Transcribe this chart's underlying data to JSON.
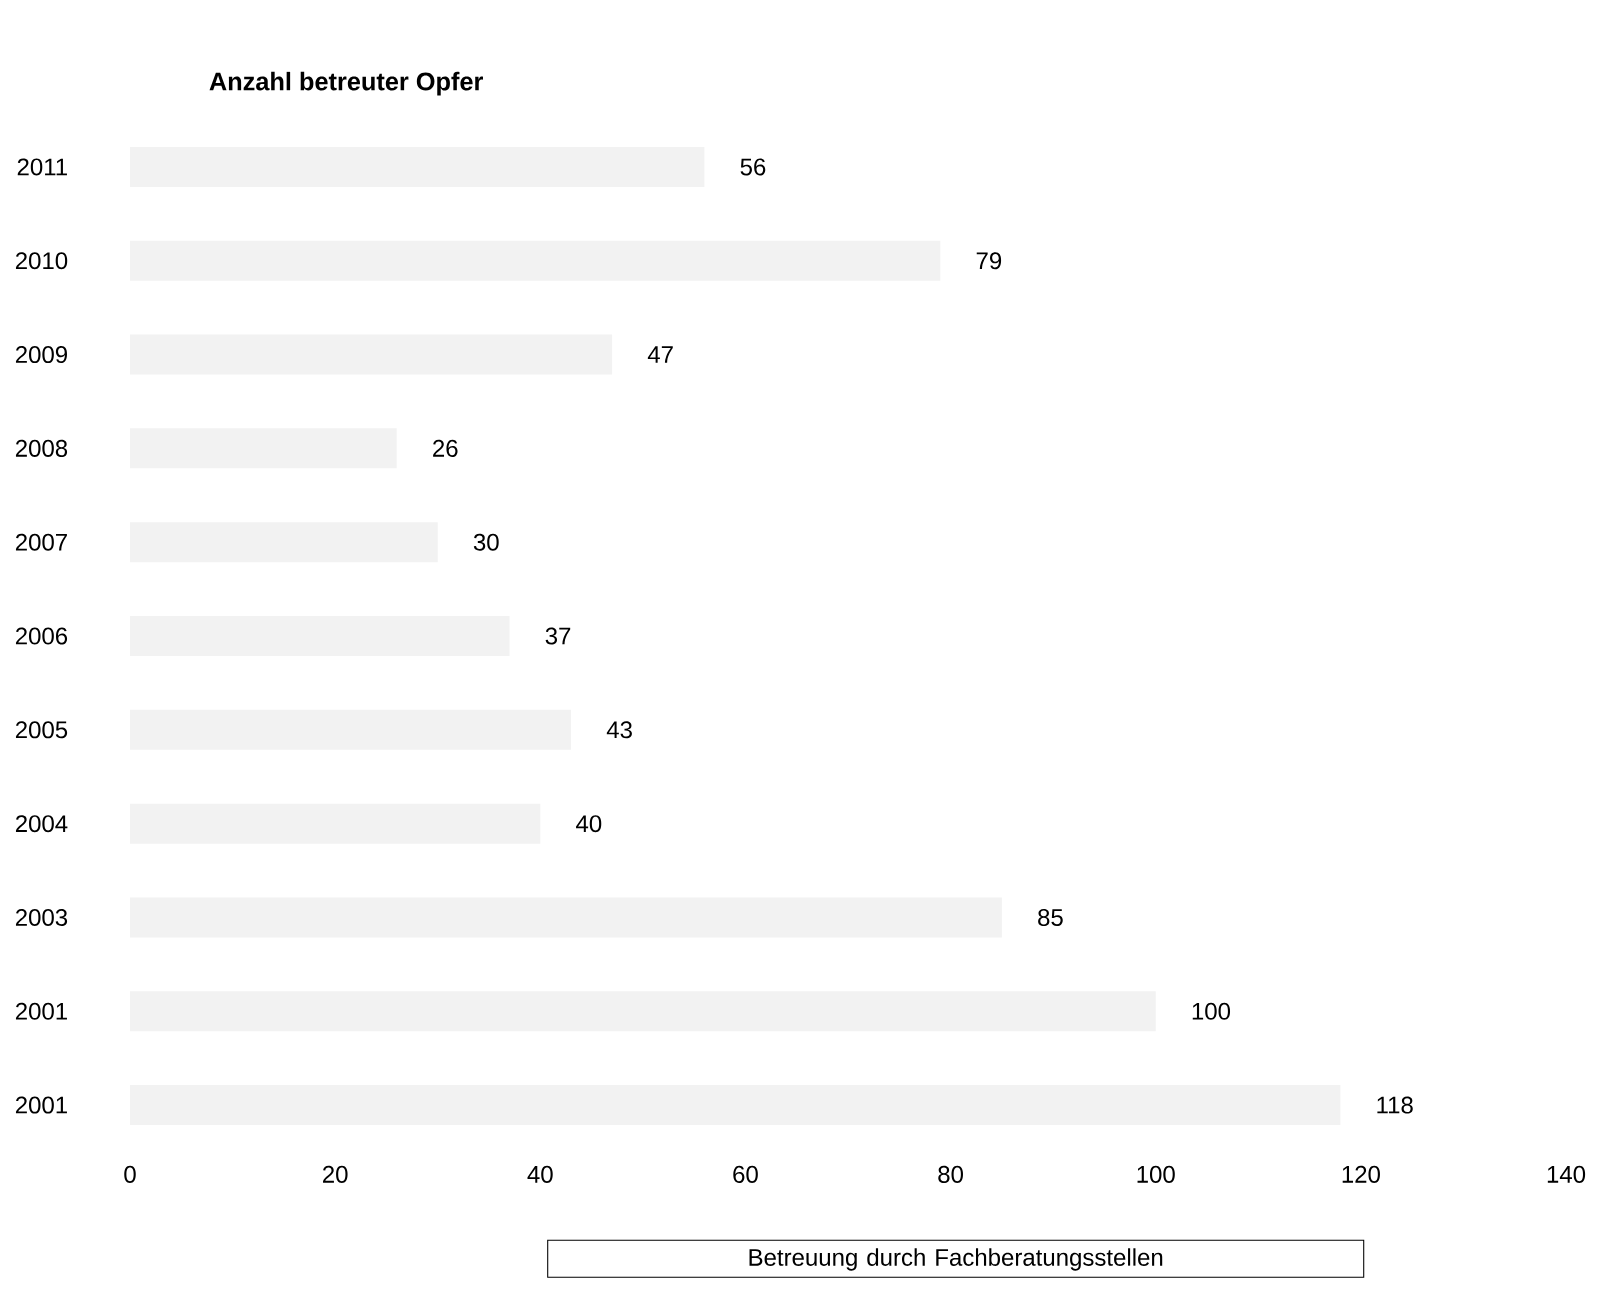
{
  "chart_data": {
    "type": "bar",
    "orientation": "horizontal",
    "title": "Anzahl betreuter Opfer",
    "categories": [
      "2011",
      "2010",
      "2009",
      "2008",
      "2007",
      "2006",
      "2005",
      "2004",
      "2003",
      "2001",
      "2001"
    ],
    "series": [
      {
        "name": "Betreuung durch Fachberatungsstellen",
        "color": "#f2f2f2",
        "values": [
          56,
          79,
          47,
          26,
          30,
          37,
          43,
          40,
          85,
          100,
          118
        ]
      }
    ],
    "xlim": [
      0,
      140
    ],
    "xticks": [
      0,
      20,
      40,
      60,
      80,
      100,
      120,
      140
    ],
    "data_labels": true,
    "legend": "bottom",
    "grid": false
  }
}
